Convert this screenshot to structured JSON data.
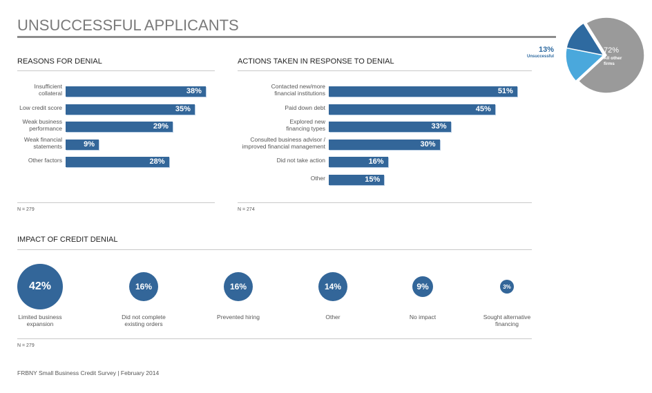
{
  "page": {
    "title": "UNSUCCESSFUL APPLICANTS",
    "footer": "FRBNY Small Business Credit Survey  |  February 2014"
  },
  "colors": {
    "bar": "#336699",
    "pie_unsuccessful": "#2e6aa0",
    "pie_light": "#4aa8dc",
    "pie_other": "#9a9a9a",
    "title": "#7a7a7a"
  },
  "chart_data": [
    {
      "type": "pie",
      "title": "",
      "slices": [
        {
          "label": "All other firms",
          "value": 72,
          "display": "72%",
          "color": "#9a9a9a"
        },
        {
          "label": "Unsuccessful",
          "value": 13,
          "display": "13%",
          "color": "#2e6aa0"
        },
        {
          "label": "",
          "value": 15,
          "display": "",
          "color": "#4aa8dc"
        }
      ]
    },
    {
      "type": "bar",
      "orientation": "horizontal",
      "title": "REASONS FOR DENIAL",
      "categories": [
        "Insufficient\ncollateral",
        "Low credit score",
        "Weak business\nperformance",
        "Weak financial\nstatements",
        "Other factors"
      ],
      "values": [
        38,
        35,
        29,
        9,
        28
      ],
      "value_labels": [
        "38%",
        "35%",
        "29%",
        "9%",
        "28%"
      ],
      "xlim": [
        0,
        100
      ],
      "note": "N = 279"
    },
    {
      "type": "bar",
      "orientation": "horizontal",
      "title": "ACTIONS TAKEN IN RESPONSE TO DENIAL",
      "categories": [
        "Contacted new/more\nfinancial institutions",
        "Paid down debt",
        "Explored new\nfinancing types",
        "Consulted business advisor /\nimproved financial management",
        "Did not take action",
        "Other"
      ],
      "values": [
        51,
        45,
        33,
        30,
        16,
        15
      ],
      "value_labels": [
        "51%",
        "45%",
        "33%",
        "30%",
        "16%",
        "15%"
      ],
      "xlim": [
        0,
        100
      ],
      "note": "N = 274"
    },
    {
      "type": "bubble",
      "title": "IMPACT OF CREDIT DENIAL",
      "categories": [
        "Limited business\nexpansion",
        "Did not complete\nexisting orders",
        "Prevented hiring",
        "Other",
        "No impact",
        "Sought alternative\nfinancing"
      ],
      "values": [
        42,
        16,
        16,
        14,
        9,
        3
      ],
      "value_labels": [
        "42%",
        "16%",
        "16%",
        "14%",
        "9%",
        "3%"
      ],
      "note": "N = 279"
    }
  ]
}
